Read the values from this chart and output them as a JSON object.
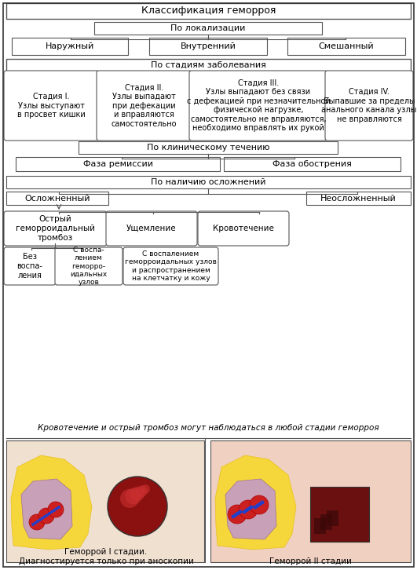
{
  "title": "Классификация геморроя",
  "bg_color": "#ffffff",
  "border_color": "#555555",
  "text_color": "#000000",
  "arrow_color": "#555555",
  "bottom_text": "Кровотечение и острый тромбоз могут наблюдаться в любой стадии геморроя",
  "caption_left": "Геморрой I стадии.\nДиагностируется только при аноскопии",
  "caption_right": "Геморрой II стадии"
}
